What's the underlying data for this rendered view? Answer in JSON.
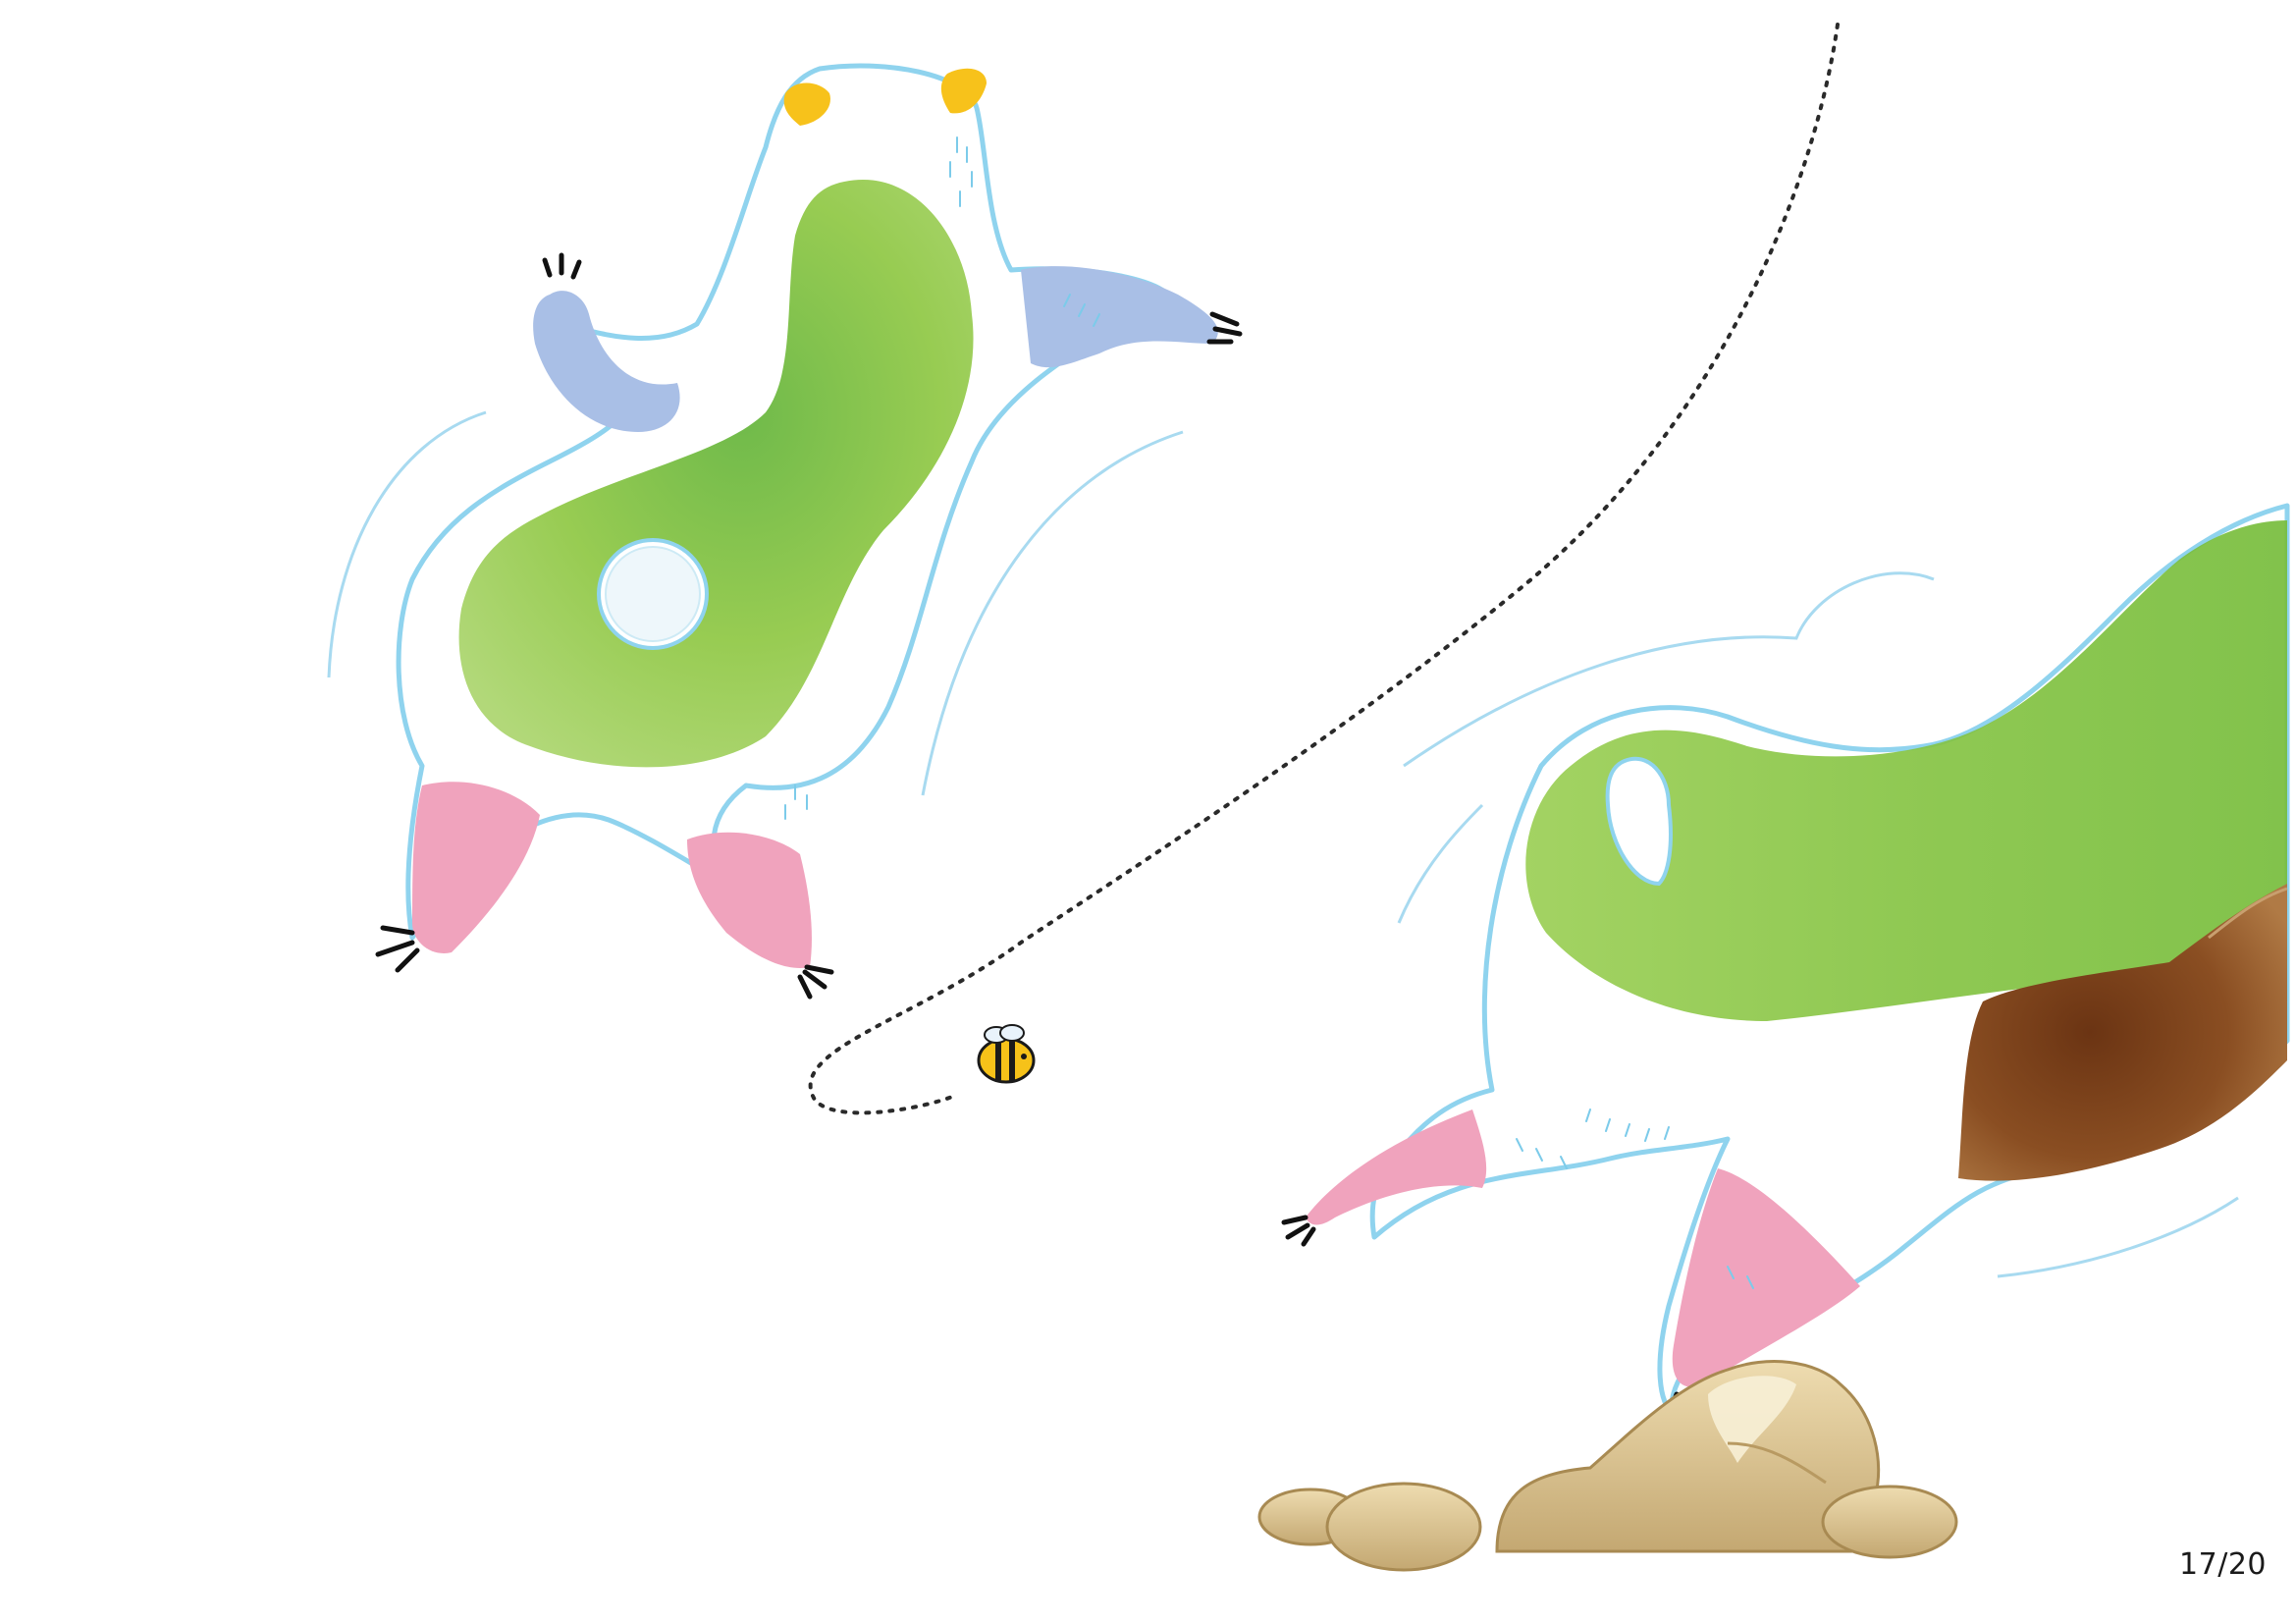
{
  "page": {
    "number_label": "17/20"
  },
  "illustration": {
    "colors": {
      "outline": "#8fd3ee",
      "body_green": "#8cc63f",
      "body_green_dark": "#5fb236",
      "arm_blue": "#a9bfe6",
      "paw_pink": "#f0a3bd",
      "beak_yellow": "#f7c21b",
      "dirt_brown": "#8a4e22",
      "rock_tan": "#d9c290",
      "rock_shadow": "#b89a62",
      "bee_yellow": "#f6c219",
      "trail": "#2a2a2a"
    },
    "icons": [
      "creature-left",
      "creature-right",
      "bee-icon",
      "rocks",
      "dirt-clump"
    ]
  }
}
